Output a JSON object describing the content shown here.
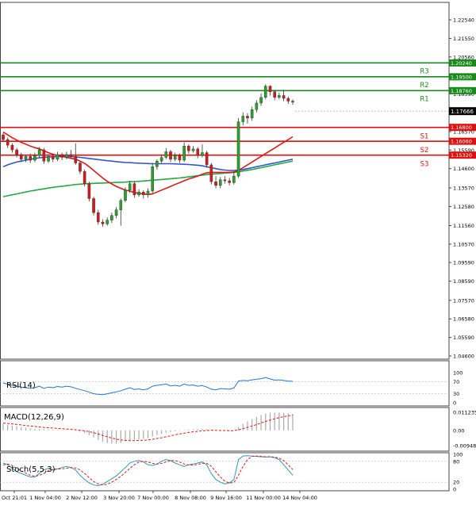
{
  "chart_data": {
    "type": "line",
    "symbol_price": "1.17666",
    "price_axis": {
      "ticks": [
        "1.22540",
        "1.21550",
        "1.20560",
        "1.19580",
        "1.18590",
        "1.16570",
        "1.15590",
        "1.14600",
        "1.13570",
        "1.12580",
        "1.11560",
        "1.10570",
        "1.09590",
        "1.08590",
        "1.07570",
        "1.06580",
        "1.05590",
        "1.04600"
      ],
      "tick_values": [
        1.2254,
        1.2155,
        1.2056,
        1.1958,
        1.1859,
        1.1657,
        1.1559,
        1.146,
        1.1357,
        1.1258,
        1.1156,
        1.1057,
        1.0959,
        1.0859,
        1.0757,
        1.0658,
        1.0559,
        1.046
      ],
      "range": [
        1.046,
        1.2254
      ]
    },
    "levels": [
      {
        "name": "R3",
        "value": 1.2024,
        "label": "1.20240",
        "color": "#1a8a1a"
      },
      {
        "name": "R2",
        "value": 1.195,
        "label": "1.19500",
        "color": "#1a8a1a"
      },
      {
        "name": "R1",
        "value": 1.1876,
        "label": "1.18760",
        "color": "#1a8a1a"
      },
      {
        "name": "S1",
        "value": 1.168,
        "label": "1.16800",
        "color": "#e01010"
      },
      {
        "name": "S2",
        "value": 1.1606,
        "label": "1.16060",
        "color": "#e01010"
      },
      {
        "name": "S3",
        "value": 1.1532,
        "label": "1.15320",
        "color": "#e01010"
      }
    ],
    "x_labels": [
      "Oct 21:01",
      "1 Nov 04:00",
      "2 Nov 12:00",
      "3 Nov 20:00",
      "7 Nov 00:00",
      "8 Nov 08:00",
      "9 Nov 16:00",
      "11 Nov 00:00",
      "14 Nov 04:00"
    ],
    "candles": [
      [
        1.164,
        1.1615,
        1.165,
        1.1605
      ],
      [
        1.1615,
        1.1585,
        1.1625,
        1.157
      ],
      [
        1.1585,
        1.156,
        1.1595,
        1.1545
      ],
      [
        1.156,
        1.1535,
        1.157,
        1.152
      ],
      [
        1.1535,
        1.151,
        1.1545,
        1.1495
      ],
      [
        1.151,
        1.1525,
        1.1535,
        1.1495
      ],
      [
        1.1525,
        1.1505,
        1.154,
        1.149
      ],
      [
        1.1505,
        1.153,
        1.1545,
        1.1495
      ],
      [
        1.153,
        1.156,
        1.1575,
        1.152
      ],
      [
        1.156,
        1.15,
        1.157,
        1.1485
      ],
      [
        1.15,
        1.1525,
        1.1535,
        1.149
      ],
      [
        1.1525,
        1.151,
        1.154,
        1.1495
      ],
      [
        1.151,
        1.1535,
        1.155,
        1.15
      ],
      [
        1.1535,
        1.152,
        1.1545,
        1.1505
      ],
      [
        1.152,
        1.1535,
        1.155,
        1.151
      ],
      [
        1.1535,
        1.1525,
        1.156,
        1.1515
      ],
      [
        1.1525,
        1.149,
        1.1595,
        1.148
      ],
      [
        1.149,
        1.1445,
        1.15,
        1.143
      ],
      [
        1.1445,
        1.138,
        1.1455,
        1.1365
      ],
      [
        1.138,
        1.13,
        1.139,
        1.1285
      ],
      [
        1.13,
        1.1225,
        1.131,
        1.121
      ],
      [
        1.1225,
        1.1175,
        1.124,
        1.116
      ],
      [
        1.1175,
        1.1165,
        1.119,
        1.115
      ],
      [
        1.1165,
        1.1185,
        1.12,
        1.1155
      ],
      [
        1.1185,
        1.121,
        1.1225,
        1.117
      ],
      [
        1.121,
        1.124,
        1.1255,
        1.1195
      ],
      [
        1.124,
        1.129,
        1.13,
        1.1155
      ],
      [
        1.129,
        1.1345,
        1.136,
        1.128
      ],
      [
        1.1345,
        1.138,
        1.1395,
        1.133
      ],
      [
        1.138,
        1.132,
        1.139,
        1.1305
      ],
      [
        1.132,
        1.1335,
        1.135,
        1.131
      ],
      [
        1.1335,
        1.132,
        1.1345,
        1.13
      ],
      [
        1.132,
        1.134,
        1.1355,
        1.1305
      ],
      [
        1.134,
        1.147,
        1.149,
        1.133
      ],
      [
        1.147,
        1.15,
        1.151,
        1.1455
      ],
      [
        1.15,
        1.152,
        1.1535,
        1.149
      ],
      [
        1.152,
        1.155,
        1.157,
        1.151
      ],
      [
        1.155,
        1.151,
        1.156,
        1.1495
      ],
      [
        1.151,
        1.153,
        1.1545,
        1.15
      ],
      [
        1.153,
        1.1505,
        1.154,
        1.149
      ],
      [
        1.1505,
        1.158,
        1.16,
        1.1495
      ],
      [
        1.158,
        1.1555,
        1.159,
        1.154
      ],
      [
        1.1555,
        1.1565,
        1.158,
        1.1545
      ],
      [
        1.1565,
        1.153,
        1.1575,
        1.1515
      ],
      [
        1.153,
        1.1545,
        1.159,
        1.152
      ],
      [
        1.1545,
        1.148,
        1.1555,
        1.1465
      ],
      [
        1.148,
        1.139,
        1.149,
        1.1375
      ],
      [
        1.139,
        1.137,
        1.142,
        1.1355
      ],
      [
        1.137,
        1.14,
        1.1415,
        1.1355
      ],
      [
        1.14,
        1.1395,
        1.142,
        1.138
      ],
      [
        1.1395,
        1.1385,
        1.141,
        1.137
      ],
      [
        1.1385,
        1.142,
        1.1445,
        1.1375
      ],
      [
        1.142,
        1.171,
        1.173,
        1.141
      ],
      [
        1.171,
        1.174,
        1.176,
        1.169
      ],
      [
        1.174,
        1.173,
        1.1755,
        1.17
      ],
      [
        1.173,
        1.1775,
        1.179,
        1.1715
      ],
      [
        1.1775,
        1.181,
        1.1825,
        1.176
      ],
      [
        1.181,
        1.184,
        1.186,
        1.1795
      ],
      [
        1.184,
        1.19,
        1.191,
        1.183
      ],
      [
        1.19,
        1.187,
        1.1905,
        1.185
      ],
      [
        1.187,
        1.184,
        1.188,
        1.1825
      ],
      [
        1.184,
        1.185,
        1.1865,
        1.183
      ],
      [
        1.185,
        1.1835,
        1.188,
        1.182
      ],
      [
        1.1835,
        1.182,
        1.1845,
        1.1805
      ],
      [
        1.182,
        1.1815,
        1.183,
        1.18
      ]
    ],
    "ma_red": [
      1.1655,
      1.164,
      1.1625,
      1.1612,
      1.16,
      1.159,
      1.158,
      1.1572,
      1.1565,
      1.1555,
      1.1545,
      1.1537,
      1.153,
      1.1525,
      1.152,
      1.1515,
      1.151,
      1.15,
      1.1488,
      1.147,
      1.145,
      1.143,
      1.141,
      1.1392,
      1.1378,
      1.1365,
      1.1355,
      1.1345,
      1.134,
      1.1332,
      1.1328,
      1.1325,
      1.1322,
      1.1325,
      1.1335,
      1.1345,
      1.1355,
      1.1365,
      1.1375,
      1.1385,
      1.1395,
      1.1405,
      1.1412,
      1.142,
      1.143,
      1.1438,
      1.144,
      1.144,
      1.144,
      1.144,
      1.144,
      1.1442,
      1.145,
      1.1465,
      1.148,
      1.1495,
      1.151,
      1.1525,
      1.154,
      1.1555,
      1.157,
      1.1585,
      1.16,
      1.1615,
      1.163
    ],
    "ma_blue": [
      1.147,
      1.148,
      1.1488,
      1.1495,
      1.15,
      1.1505,
      1.151,
      1.1514,
      1.1518,
      1.152,
      1.1522,
      1.1523,
      1.1524,
      1.1525,
      1.1525,
      1.1524,
      1.1522,
      1.152,
      1.1517,
      1.1514,
      1.1511,
      1.1508,
      1.1505,
      1.1502,
      1.15,
      1.1497,
      1.1495,
      1.1493,
      1.1492,
      1.149,
      1.1489,
      1.1488,
      1.1487,
      1.1486,
      1.1486,
      1.1486,
      1.1486,
      1.1486,
      1.1485,
      1.1484,
      1.1483,
      1.1482,
      1.148,
      1.1478,
      1.1475,
      1.147,
      1.1465,
      1.146,
      1.1455,
      1.1452,
      1.145,
      1.145,
      1.1452,
      1.1455,
      1.146,
      1.1465,
      1.147,
      1.1475,
      1.148,
      1.1485,
      1.149,
      1.1495,
      1.15,
      1.1505,
      1.151
    ],
    "ma_green": [
      1.131,
      1.1315,
      1.132,
      1.1325,
      1.133,
      1.1335,
      1.134,
      1.1344,
      1.1348,
      1.1352,
      1.1356,
      1.136,
      1.1363,
      1.1366,
      1.1369,
      1.1372,
      1.1375,
      1.1377,
      1.1379,
      1.138,
      1.1381,
      1.1382,
      1.1383,
      1.1384,
      1.1385,
      1.1386,
      1.1387,
      1.1388,
      1.139,
      1.1391,
      1.1392,
      1.1394,
      1.1396,
      1.1398,
      1.14,
      1.1402,
      1.1404,
      1.1406,
      1.1408,
      1.141,
      1.1413,
      1.1416,
      1.1419,
      1.1422,
      1.1425,
      1.1428,
      1.143,
      1.1432,
      1.1434,
      1.1436,
      1.1438,
      1.144,
      1.1443,
      1.1447,
      1.1451,
      1.1455,
      1.146,
      1.1465,
      1.147,
      1.1475,
      1.148,
      1.1485,
      1.149,
      1.1495,
      1.15
    ],
    "rsi": {
      "label": "RSI(14)",
      "ticks": [
        "100",
        "70",
        "30",
        "0"
      ],
      "tick_values": [
        100,
        70,
        30,
        0
      ],
      "values": [
        65,
        62,
        58,
        55,
        52,
        50,
        48,
        50,
        55,
        48,
        52,
        50,
        54,
        52,
        55,
        53,
        48,
        44,
        40,
        35,
        30,
        28,
        27,
        30,
        33,
        36,
        40,
        45,
        50,
        44,
        46,
        43,
        46,
        55,
        58,
        60,
        62,
        56,
        58,
        55,
        62,
        58,
        59,
        55,
        57,
        52,
        45,
        43,
        47,
        46,
        45,
        49,
        72,
        74,
        73,
        76,
        78,
        80,
        84,
        79,
        75,
        76,
        74,
        72,
        71
      ]
    },
    "macd": {
      "label": "MACD(12,26,9)",
      "ticks": [
        "0.011235",
        "0.00",
        "-0.009486"
      ],
      "tick_values": [
        0.011235,
        0,
        -0.009486
      ],
      "histogram": [
        0.004,
        0.0035,
        0.003,
        0.0025,
        0.002,
        0.0016,
        0.0012,
        0.001,
        0.0009,
        0.0007,
        0.0005,
        0.0004,
        0.0003,
        0.0002,
        0.0001,
        0.0,
        -0.0003,
        -0.0009,
        -0.0018,
        -0.003,
        -0.0045,
        -0.006,
        -0.0072,
        -0.008,
        -0.0083,
        -0.0083,
        -0.0078,
        -0.0068,
        -0.006,
        -0.0058,
        -0.0055,
        -0.0052,
        -0.0048,
        -0.0038,
        -0.003,
        -0.0022,
        -0.0015,
        -0.001,
        -0.0006,
        -0.0003,
        0.0002,
        0.0005,
        0.0007,
        0.0008,
        0.0009,
        0.0007,
        0.0003,
        -0.0001,
        -0.0003,
        -0.0004,
        -0.0004,
        -0.0002,
        0.002,
        0.004,
        0.0055,
        0.007,
        0.0083,
        0.0095,
        0.0105,
        0.011,
        0.011,
        0.011,
        0.0108,
        0.0105,
        0.0102
      ],
      "signal": [
        0.0045,
        0.0043,
        0.004,
        0.0037,
        0.0034,
        0.003,
        0.0027,
        0.0024,
        0.0021,
        0.0018,
        0.0016,
        0.0014,
        0.0012,
        0.001,
        0.0008,
        0.0006,
        0.0004,
        0.0001,
        -0.0003,
        -0.0008,
        -0.0015,
        -0.0023,
        -0.0032,
        -0.004,
        -0.0048,
        -0.0055,
        -0.006,
        -0.0063,
        -0.0064,
        -0.0064,
        -0.0063,
        -0.0062,
        -0.006,
        -0.0056,
        -0.0051,
        -0.0046,
        -0.004,
        -0.0034,
        -0.0028,
        -0.0023,
        -0.0018,
        -0.0013,
        -0.0009,
        -0.0006,
        -0.0003,
        -0.0001,
        0.0,
        0.0,
        -0.0001,
        -0.0001,
        -0.0002,
        -0.0002,
        0.0003,
        0.001,
        0.0018,
        0.0027,
        0.0036,
        0.0046,
        0.0055,
        0.0064,
        0.0072,
        0.0079,
        0.0085,
        0.009,
        0.0095
      ]
    },
    "stoch": {
      "label": "Stoch(5,5,3)",
      "ticks": [
        "100",
        "80",
        "20",
        "0"
      ],
      "tick_values": [
        100,
        80,
        20,
        0
      ],
      "main": [
        75,
        70,
        60,
        50,
        45,
        40,
        35,
        35,
        45,
        55,
        60,
        55,
        58,
        62,
        65,
        62,
        55,
        40,
        28,
        18,
        12,
        10,
        14,
        22,
        30,
        38,
        50,
        62,
        75,
        80,
        82,
        78,
        70,
        68,
        72,
        80,
        85,
        82,
        75,
        70,
        65,
        70,
        72,
        75,
        78,
        70,
        45,
        28,
        20,
        15,
        18,
        28,
        85,
        95,
        96,
        95,
        94,
        93,
        92,
        93,
        90,
        85,
        70,
        55,
        40
      ],
      "signal": [
        70,
        72,
        68,
        60,
        52,
        46,
        40,
        37,
        40,
        45,
        53,
        57,
        58,
        58,
        60,
        62,
        61,
        55,
        45,
        33,
        22,
        15,
        12,
        14,
        20,
        28,
        37,
        48,
        60,
        70,
        78,
        80,
        78,
        74,
        72,
        74,
        78,
        82,
        82,
        78,
        72,
        69,
        69,
        71,
        74,
        74,
        66,
        50,
        35,
        23,
        18,
        19,
        40,
        65,
        85,
        94,
        95,
        94,
        93,
        93,
        92,
        89,
        82,
        70,
        56
      ]
    }
  }
}
